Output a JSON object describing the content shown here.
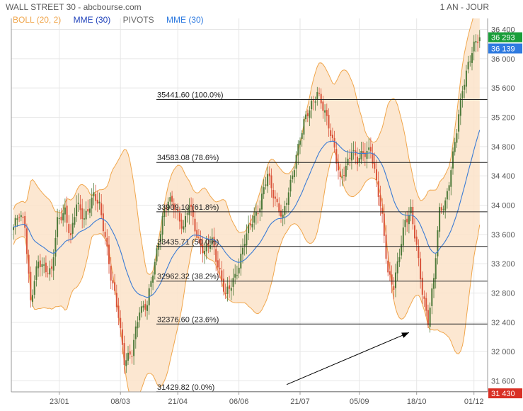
{
  "header": {
    "title": "WALL STREET 30 - abcbourse.com",
    "period": "1 AN - JOUR"
  },
  "legend": {
    "boll": "BOLL (20, 2)",
    "mme1": "MME (30)",
    "pivots": "PIVOTS",
    "mme2": "MME (30)"
  },
  "colors": {
    "up": "#4e7a3a",
    "down": "#d9543b",
    "band_fill": "#fbe3c9",
    "band_line": "#f0a64c",
    "mme": "#3a7bd5",
    "fib": "#222222",
    "tag_last": "#1a9e3a",
    "tag_mme": "#2f7be0",
    "tag_low": "#d93025",
    "legend_boll": "#f0a64c",
    "legend_mme": "#2244bb",
    "legend_pivots": "#666666",
    "legend_mme2": "#2f7be0"
  },
  "chart_data": {
    "type": "candlestick",
    "title": "WALL STREET 30",
    "ylim": [
      31450,
      36550
    ],
    "y_ticks": [
      31600,
      32000,
      32400,
      32800,
      33200,
      33600,
      34000,
      34400,
      34800,
      35200,
      35600,
      36000,
      36400
    ],
    "y_tick_labels": [
      "31 600",
      "32 000",
      "32 400",
      "32 800",
      "33 200",
      "33 600",
      "34 000",
      "34 400",
      "34 800",
      "35 200",
      "35 600",
      "36 000",
      "36 400"
    ],
    "x_ticks": [
      {
        "label": "23/01",
        "i": 24
      },
      {
        "label": "08/03",
        "i": 56
      },
      {
        "label": "21/04",
        "i": 86
      },
      {
        "label": "06/06",
        "i": 118
      },
      {
        "label": "21/07",
        "i": 150
      },
      {
        "label": "05/09",
        "i": 181
      },
      {
        "label": "18/10",
        "i": 211
      },
      {
        "label": "01/12",
        "i": 241
      }
    ],
    "n_bars": 245,
    "anchors": [
      [
        0,
        33700
      ],
      [
        3,
        33850
      ],
      [
        6,
        33750
      ],
      [
        9,
        32700
      ],
      [
        13,
        33200
      ],
      [
        17,
        33150
      ],
      [
        20,
        33100
      ],
      [
        23,
        33750
      ],
      [
        27,
        33950
      ],
      [
        30,
        33550
      ],
      [
        33,
        34000
      ],
      [
        37,
        33850
      ],
      [
        42,
        34100
      ],
      [
        45,
        34000
      ],
      [
        48,
        33600
      ],
      [
        51,
        33000
      ],
      [
        55,
        32500
      ],
      [
        58,
        31900
      ],
      [
        62,
        31950
      ],
      [
        66,
        32600
      ],
      [
        70,
        32650
      ],
      [
        74,
        33200
      ],
      [
        78,
        33850
      ],
      [
        81,
        34050
      ],
      [
        85,
        33950
      ],
      [
        89,
        33700
      ],
      [
        92,
        34000
      ],
      [
        96,
        33600
      ],
      [
        100,
        33350
      ],
      [
        104,
        33500
      ],
      [
        108,
        33100
      ],
      [
        111,
        32750
      ],
      [
        114,
        32900
      ],
      [
        118,
        33200
      ],
      [
        121,
        33500
      ],
      [
        125,
        33800
      ],
      [
        129,
        34000
      ],
      [
        133,
        34400
      ],
      [
        137,
        34100
      ],
      [
        141,
        33800
      ],
      [
        145,
        34300
      ],
      [
        148,
        34700
      ],
      [
        152,
        35100
      ],
      [
        156,
        35400
      ],
      [
        159,
        35550
      ],
      [
        162,
        35300
      ],
      [
        165,
        35100
      ],
      [
        168,
        34800
      ],
      [
        171,
        34300
      ],
      [
        174,
        34500
      ],
      [
        177,
        34800
      ],
      [
        180,
        34600
      ],
      [
        184,
        34700
      ],
      [
        187,
        34800
      ],
      [
        190,
        34300
      ],
      [
        193,
        33800
      ],
      [
        196,
        33100
      ],
      [
        199,
        32900
      ],
      [
        202,
        33300
      ],
      [
        205,
        33800
      ],
      [
        208,
        33950
      ],
      [
        211,
        33400
      ],
      [
        214,
        32800
      ],
      [
        217,
        32450
      ],
      [
        220,
        33000
      ],
      [
        223,
        33900
      ],
      [
        226,
        34050
      ],
      [
        229,
        34500
      ],
      [
        232,
        35000
      ],
      [
        235,
        35600
      ],
      [
        238,
        35950
      ],
      [
        241,
        36150
      ],
      [
        244,
        36293
      ]
    ],
    "series": [
      {
        "name": "BOLL (20, 2)",
        "type": "band"
      },
      {
        "name": "MME (30)",
        "type": "line"
      }
    ],
    "fibonacci": [
      {
        "label": "35441.60 (100.0%)",
        "value": 35441.6
      },
      {
        "label": "34583.08 (78.6%)",
        "value": 34583.08
      },
      {
        "label": "33909.10 (61.8%)",
        "value": 33909.1
      },
      {
        "label": "33435.71 (50.0%)",
        "value": 33435.71
      },
      {
        "label": "32962.32 (38.2%)",
        "value": 32962.32
      },
      {
        "label": "32376.60 (23.6%)",
        "value": 32376.6
      },
      {
        "label": "31429.82 (0.0%)",
        "value": 31429.82
      }
    ],
    "arrow": {
      "from": {
        "i": 143,
        "v": 31550
      },
      "to": {
        "i": 207,
        "v": 32260
      }
    },
    "price_tags": [
      {
        "label": "36 293",
        "value": 36293,
        "color": "tag_last"
      },
      {
        "label": "36 139",
        "value": 36139,
        "color": "tag_mme"
      },
      {
        "label": "31 430",
        "value": 31430,
        "color": "tag_low"
      }
    ],
    "grid": true
  }
}
